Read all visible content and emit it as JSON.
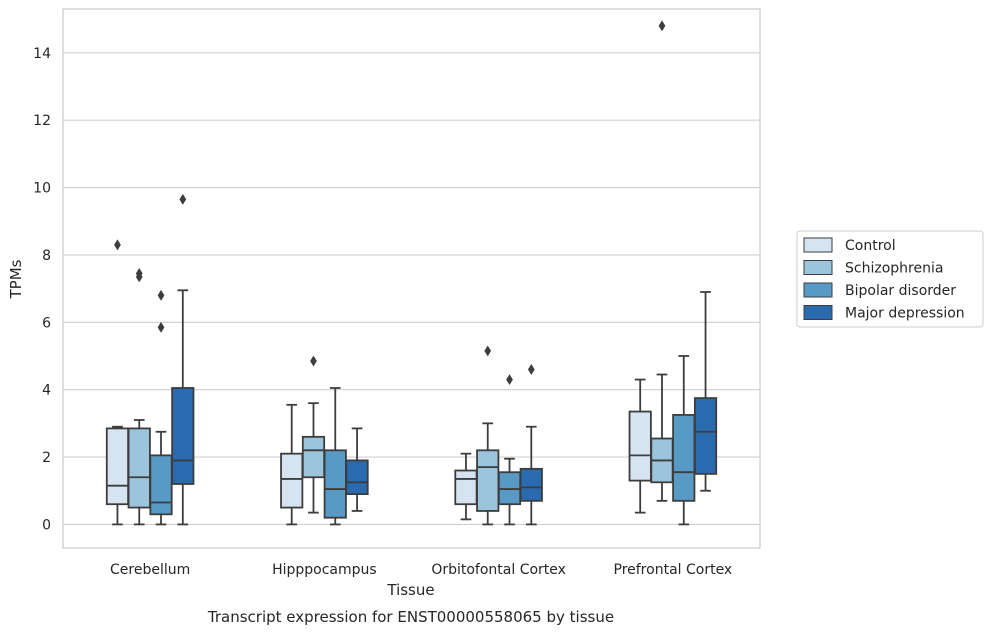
{
  "chart_data": {
    "type": "box",
    "xlabel": "Tissue",
    "ylabel": "TPMs",
    "caption": "Transcript expression for ENST00000558065 by tissue",
    "ylim": [
      -0.7,
      15.3
    ],
    "yticks": [
      0,
      2,
      4,
      6,
      8,
      10,
      12,
      14
    ],
    "grid": "horizontal",
    "legend_position": "right",
    "categories": [
      "Cerebellum",
      "Hipppocampus",
      "Orbitofontal Cortex",
      "Prefrontal Cortex"
    ],
    "series": [
      {
        "name": "Control",
        "color": "#d6e4f2",
        "boxes": [
          {
            "whislo": 0.0,
            "q1": 0.6,
            "med": 1.15,
            "q3": 2.85,
            "whishi": 2.9,
            "fliers": [
              8.3
            ]
          },
          {
            "whislo": 0.0,
            "q1": 0.5,
            "med": 1.35,
            "q3": 2.1,
            "whishi": 3.55,
            "fliers": []
          },
          {
            "whislo": 0.15,
            "q1": 0.6,
            "med": 1.35,
            "q3": 1.6,
            "whishi": 2.1,
            "fliers": []
          },
          {
            "whislo": 0.35,
            "q1": 1.3,
            "med": 2.05,
            "q3": 3.35,
            "whishi": 4.3,
            "fliers": []
          }
        ]
      },
      {
        "name": "Schizophrenia",
        "color": "#9dc4dd",
        "boxes": [
          {
            "whislo": 0.0,
            "q1": 0.5,
            "med": 1.4,
            "q3": 2.85,
            "whishi": 3.1,
            "fliers": [
              7.35,
              7.45
            ]
          },
          {
            "whislo": 0.35,
            "q1": 1.4,
            "med": 2.2,
            "q3": 2.6,
            "whishi": 3.6,
            "fliers": [
              4.85
            ]
          },
          {
            "whislo": 0.0,
            "q1": 0.4,
            "med": 1.7,
            "q3": 2.2,
            "whishi": 3.0,
            "fliers": [
              5.15
            ]
          },
          {
            "whislo": 0.7,
            "q1": 1.25,
            "med": 1.9,
            "q3": 2.55,
            "whishi": 4.45,
            "fliers": [
              14.8
            ]
          }
        ]
      },
      {
        "name": "Bipolar disorder",
        "color": "#5899c6",
        "boxes": [
          {
            "whislo": 0.0,
            "q1": 0.3,
            "med": 0.65,
            "q3": 2.05,
            "whishi": 2.75,
            "fliers": [
              5.85,
              6.8
            ]
          },
          {
            "whislo": 0.0,
            "q1": 0.2,
            "med": 1.05,
            "q3": 2.2,
            "whishi": 4.05,
            "fliers": []
          },
          {
            "whislo": 0.0,
            "q1": 0.6,
            "med": 1.05,
            "q3": 1.55,
            "whishi": 1.95,
            "fliers": [
              4.3
            ]
          },
          {
            "whislo": 0.0,
            "q1": 0.7,
            "med": 1.55,
            "q3": 3.25,
            "whishi": 5.0,
            "fliers": []
          }
        ]
      },
      {
        "name": "Major depression",
        "color": "#2a6bb0",
        "boxes": [
          {
            "whislo": 0.0,
            "q1": 1.2,
            "med": 1.9,
            "q3": 4.05,
            "whishi": 6.95,
            "fliers": [
              9.65
            ]
          },
          {
            "whislo": 0.4,
            "q1": 0.9,
            "med": 1.25,
            "q3": 1.9,
            "whishi": 2.85,
            "fliers": []
          },
          {
            "whislo": 0.0,
            "q1": 0.7,
            "med": 1.1,
            "q3": 1.65,
            "whishi": 2.9,
            "fliers": [
              4.6
            ]
          },
          {
            "whislo": 1.0,
            "q1": 1.5,
            "med": 2.75,
            "q3": 3.75,
            "whishi": 6.9,
            "fliers": []
          }
        ]
      }
    ]
  }
}
